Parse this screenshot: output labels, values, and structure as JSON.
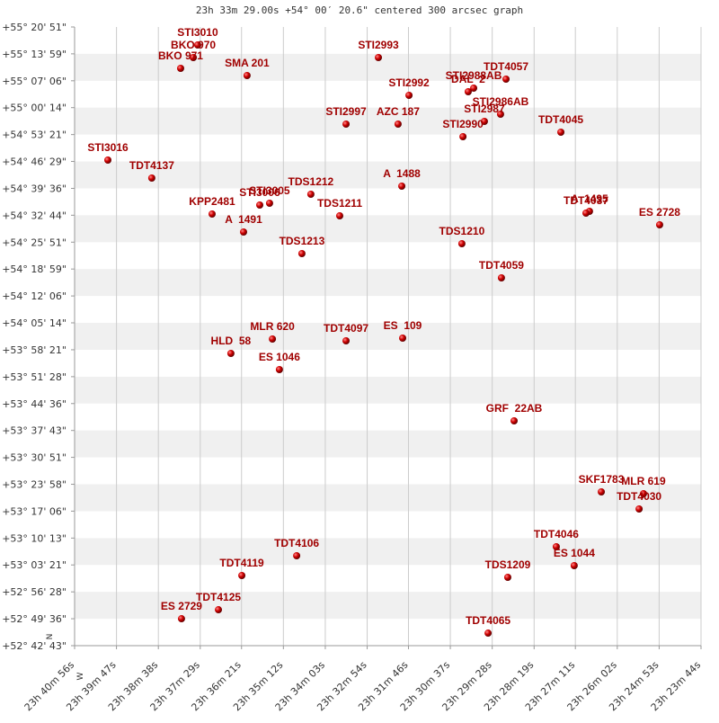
{
  "chart_data": {
    "type": "scatter",
    "title": "23h 33m 29.00s +54° 00′ 20.6\" centered 300 arcsec graph",
    "direction_labels": {
      "north": "N",
      "west": "W"
    },
    "color": "#b00000",
    "label_color": "#a00000",
    "grid": true,
    "banded_rows": true,
    "xlim": [
      23.68222,
      23.39556
    ],
    "xticks": [
      {
        "value": 23.68222,
        "label": "23h 40m 56s"
      },
      {
        "value": 23.66306,
        "label": "23h 39m 47s"
      },
      {
        "value": 23.64389,
        "label": "23h 38m 38s"
      },
      {
        "value": 23.62472,
        "label": "23h 37m 29s"
      },
      {
        "value": 23.60583,
        "label": "23h 36m 21s"
      },
      {
        "value": 23.58667,
        "label": "23h 35m 12s"
      },
      {
        "value": 23.5675,
        "label": "23h 34m 03s"
      },
      {
        "value": 23.54833,
        "label": "23h 32m 54s"
      },
      {
        "value": 23.52944,
        "label": "23h 31m 46s"
      },
      {
        "value": 23.51028,
        "label": "23h 30m 37s"
      },
      {
        "value": 23.49111,
        "label": "23h 29m 28s"
      },
      {
        "value": 23.47194,
        "label": "23h 28m 19s"
      },
      {
        "value": 23.45306,
        "label": "23h 27m 11s"
      },
      {
        "value": 23.43389,
        "label": "23h 26m 02s"
      },
      {
        "value": 23.41472,
        "label": "23h 24m 53s"
      },
      {
        "value": 23.39556,
        "label": "23h 23m 44s"
      }
    ],
    "ylim": [
      52.71194,
      55.3475
    ],
    "yticks": [
      {
        "value": 55.3475,
        "label": "+55° 20' 51\""
      },
      {
        "value": 55.23306,
        "label": "+55° 13' 59\""
      },
      {
        "value": 55.11833,
        "label": "+55° 07' 06\""
      },
      {
        "value": 55.00389,
        "label": "+55° 00' 14\""
      },
      {
        "value": 54.88917,
        "label": "+54° 53' 21\""
      },
      {
        "value": 54.77472,
        "label": "+54° 46' 29\""
      },
      {
        "value": 54.66,
        "label": "+54° 39' 36\""
      },
      {
        "value": 54.54556,
        "label": "+54° 32' 44\""
      },
      {
        "value": 54.43083,
        "label": "+54° 25' 51\""
      },
      {
        "value": 54.31639,
        "label": "+54° 18' 59\""
      },
      {
        "value": 54.20167,
        "label": "+54° 12' 06\""
      },
      {
        "value": 54.08722,
        "label": "+54° 05' 14\""
      },
      {
        "value": 53.9725,
        "label": "+53° 58' 21\""
      },
      {
        "value": 53.85778,
        "label": "+53° 51' 28\""
      },
      {
        "value": 53.74333,
        "label": "+53° 44' 36\""
      },
      {
        "value": 53.62861,
        "label": "+53° 37' 43\""
      },
      {
        "value": 53.51417,
        "label": "+53° 30' 51\""
      },
      {
        "value": 53.39944,
        "label": "+53° 23' 58\""
      },
      {
        "value": 53.285,
        "label": "+53° 17' 06\""
      },
      {
        "value": 53.17028,
        "label": "+53° 10' 13\""
      },
      {
        "value": 53.05583,
        "label": "+53° 03' 21\""
      },
      {
        "value": 52.94111,
        "label": "+52° 56' 28\""
      },
      {
        "value": 52.82667,
        "label": "+52° 49' 36\""
      },
      {
        "value": 52.71194,
        "label": "+52° 42' 43\""
      }
    ],
    "point_labels": [
      "STI3010",
      "BKO 970",
      "BKO 971",
      "SMA 201",
      "STI2993",
      "STI2992",
      "STI2988AB",
      "DAL  2",
      "TDT4057",
      "STI2986AB",
      "STI2987",
      "STI2997",
      "AZC 187",
      "STI2990",
      "TDT4045",
      "STI3016",
      "TDT4137",
      "A  1488",
      "TDS1212",
      "STI3005",
      "STI3006",
      "KPP2481",
      "TDS1211",
      "A  1491",
      "A  1495",
      "TDT4037",
      "ES 2728",
      "TDS1210",
      "TDS1213",
      "TDT4059",
      "MLR 620",
      "ES  109",
      "TDT4097",
      "HLD  58",
      "ES 1046",
      "GRF  22AB",
      "SKF1783",
      "MLR 619",
      "TDT4030",
      "TDT4046",
      "ES 1044",
      "TDT4106",
      "TDT4119",
      "TDS1209",
      "TDT4125",
      "ES 2729",
      "TDT4065"
    ],
    "x": [
      23.6259,
      23.6279,
      23.6337,
      23.6033,
      23.5432,
      23.5292,
      23.4996,
      23.5021,
      23.4848,
      23.4873,
      23.4947,
      23.558,
      23.5342,
      23.5045,
      23.4597,
      23.667,
      23.6469,
      23.5325,
      23.5741,
      23.593,
      23.5975,
      23.6193,
      23.5609,
      23.6049,
      23.4466,
      23.4482,
      23.4145,
      23.505,
      23.5782,
      23.4869,
      23.5917,
      23.5321,
      23.558,
      23.6107,
      23.5885,
      23.4811,
      23.4412,
      23.4219,
      23.4239,
      23.4618,
      23.4536,
      23.5806,
      23.6057,
      23.484,
      23.6164,
      23.6333,
      23.493
    ],
    "values": [
      55.2709,
      55.2173,
      55.1713,
      55.1406,
      55.2173,
      55.0564,
      55.087,
      55.0717,
      55.1253,
      54.9759,
      54.9453,
      54.9338,
      54.9338,
      54.8801,
      54.8993,
      54.7805,
      54.7039,
      54.6695,
      54.635,
      54.5967,
      54.589,
      54.5507,
      54.543,
      54.4741,
      54.5622,
      54.5545,
      54.5047,
      54.4243,
      54.3821,
      54.2787,
      54.0182,
      54.022,
      54.0106,
      53.9569,
      53.888,
      53.6696,
      53.367,
      53.3593,
      53.2942,
      53.1333,
      53.0529,
      53.095,
      53.0107,
      53.0031,
      52.8651,
      52.8268,
      52.7655
    ]
  }
}
